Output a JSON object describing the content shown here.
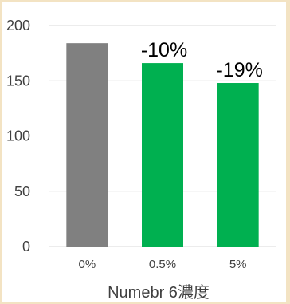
{
  "chart_data": {
    "type": "bar",
    "categories": [
      "0%",
      "0.5%",
      "5%"
    ],
    "values": [
      184,
      166,
      148
    ],
    "data_labels": [
      "",
      "-10%",
      "-19%"
    ],
    "colors": [
      "#808080",
      "#00b050",
      "#00b050"
    ],
    "xlabel": "Numebr 6濃度",
    "ylabel": "",
    "title": "",
    "ylim": [
      0,
      200
    ],
    "yticks": [
      0,
      50,
      100,
      150,
      200
    ],
    "grid": true,
    "legend": "none"
  },
  "colors": {
    "background": "#f3e3c3",
    "panel": "#ffffff",
    "grid": "#d9d9d9",
    "axis_text": "#404040"
  }
}
